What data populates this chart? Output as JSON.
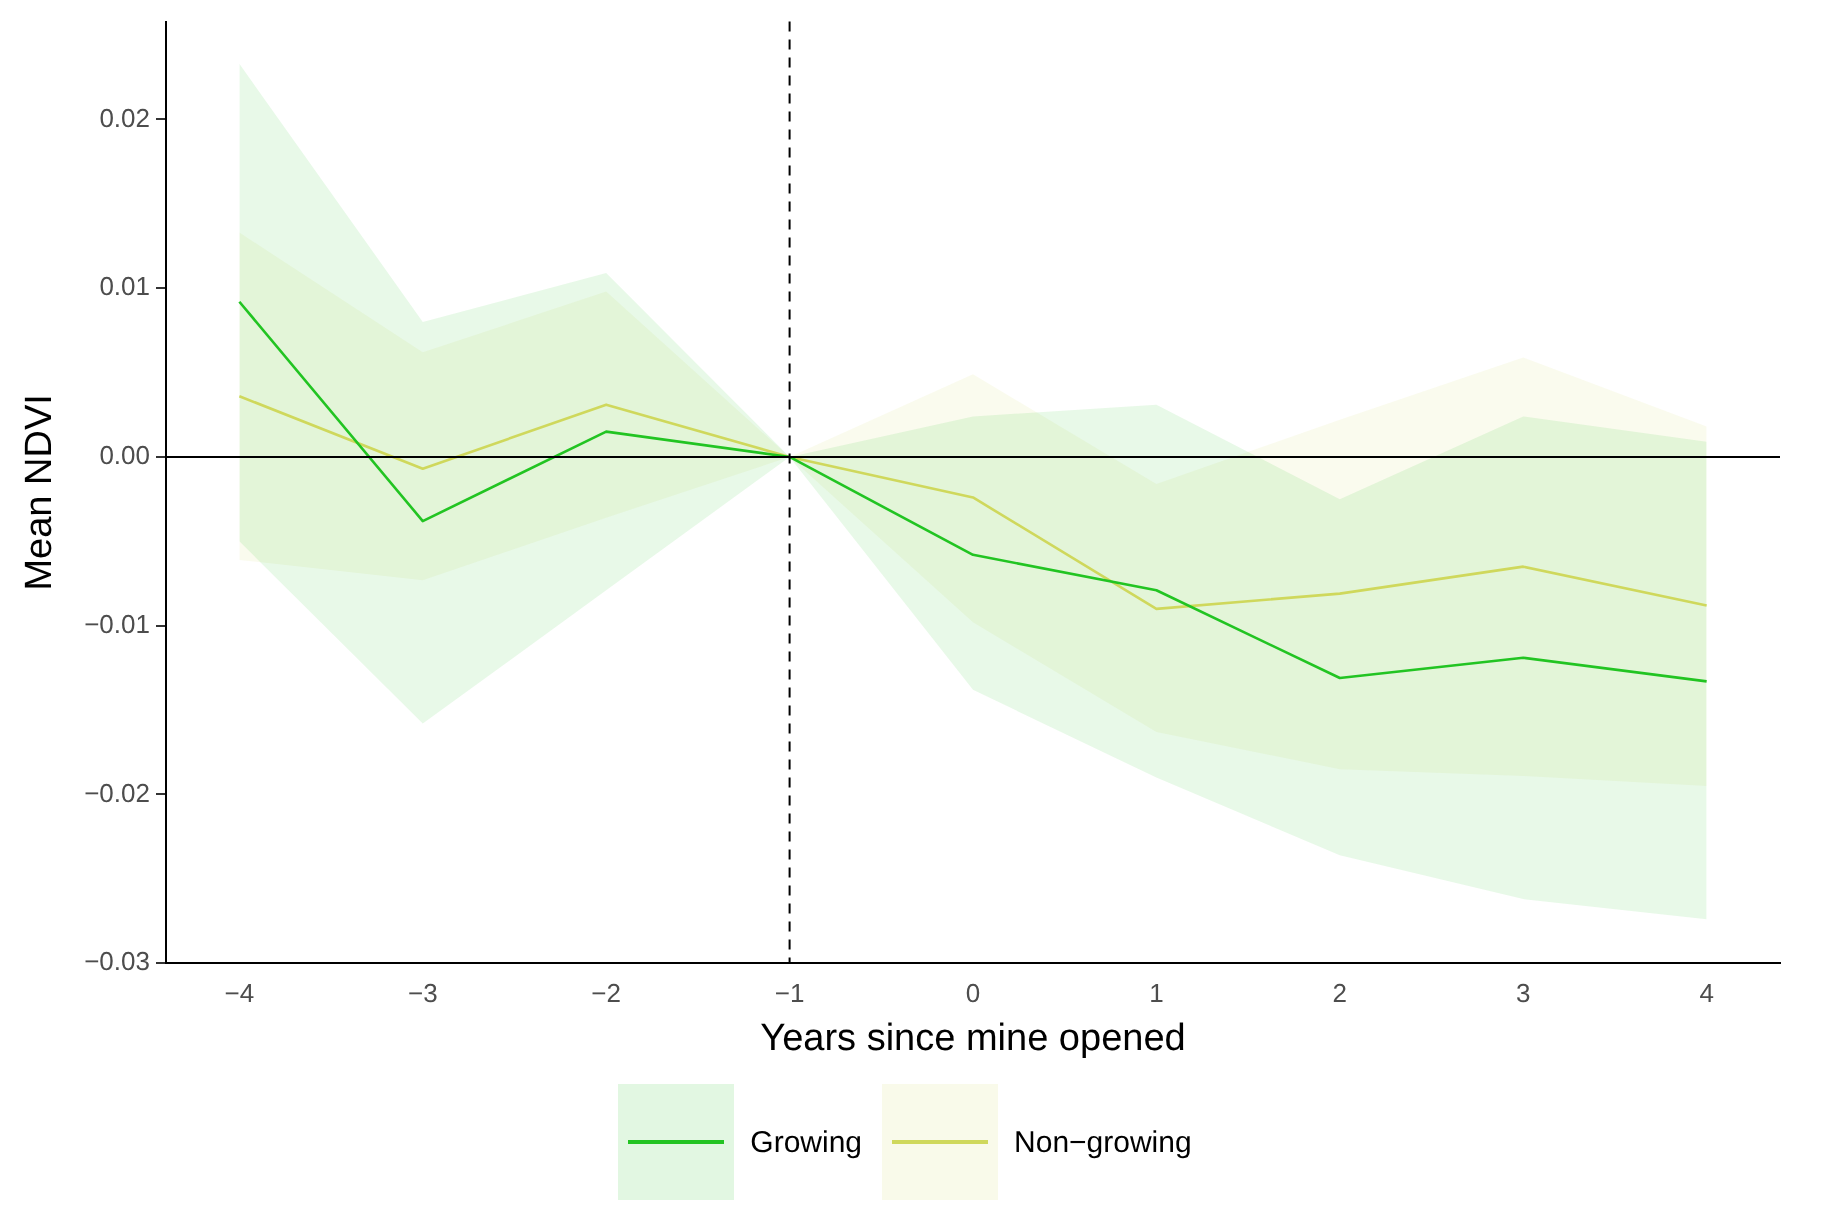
{
  "chart_data": {
    "type": "line",
    "xlabel": "Years since mine opened",
    "ylabel": "Mean NDVI",
    "x": [
      -4,
      -3,
      -2,
      -1,
      0,
      1,
      2,
      3,
      4
    ],
    "series": [
      {
        "name": "Growing",
        "color": "#22c422",
        "values": [
          0.0092,
          -0.0038,
          0.0015,
          0,
          -0.0058,
          -0.0079,
          -0.0131,
          -0.0119,
          -0.0133
        ],
        "lower": [
          -0.005,
          -0.0158,
          -0.0079,
          0,
          -0.0138,
          -0.019,
          -0.0236,
          -0.0262,
          -0.0274
        ],
        "upper": [
          0.0233,
          0.008,
          0.0109,
          0,
          0.0024,
          0.0031,
          -0.0025,
          0.0024,
          0.0009
        ]
      },
      {
        "name": "Non−growing",
        "color": "#cfd85c",
        "values": [
          0.0036,
          -0.0007,
          0.0031,
          0,
          -0.0024,
          -0.009,
          -0.0081,
          -0.0065,
          -0.0088
        ],
        "lower": [
          -0.0061,
          -0.0073,
          -0.0036,
          0,
          -0.0098,
          -0.0163,
          -0.0185,
          -0.0189,
          -0.0195
        ],
        "upper": [
          0.0133,
          0.0062,
          0.0098,
          0,
          0.0049,
          -0.0016,
          0.0022,
          0.0059,
          0.0018
        ]
      }
    ],
    "xlim": [
      -4.4,
      4.4
    ],
    "xticks": [
      {
        "value": -4,
        "label": "−4"
      },
      {
        "value": -3,
        "label": "−3"
      },
      {
        "value": -2,
        "label": "−2"
      },
      {
        "value": -1,
        "label": "−1"
      },
      0,
      1,
      2,
      3,
      4
    ],
    "ylim": [
      -0.03,
      0.0258
    ],
    "yticks": [
      {
        "value": -0.03,
        "label": "−0.03"
      },
      {
        "value": -0.02,
        "label": "−0.02"
      },
      {
        "value": -0.01,
        "label": "−0.01"
      },
      {
        "value": 0,
        "label": "0.00"
      },
      0.01,
      0.02
    ],
    "ref_lines": [
      {
        "axis": "y",
        "value": 0,
        "color": "#000000",
        "line_style": "solid"
      },
      {
        "axis": "x",
        "value": -1,
        "color": "#000000",
        "line_style": "dashed"
      }
    ],
    "grid": false,
    "legend": "bottom",
    "marker": "none",
    "line_style": "solid"
  }
}
